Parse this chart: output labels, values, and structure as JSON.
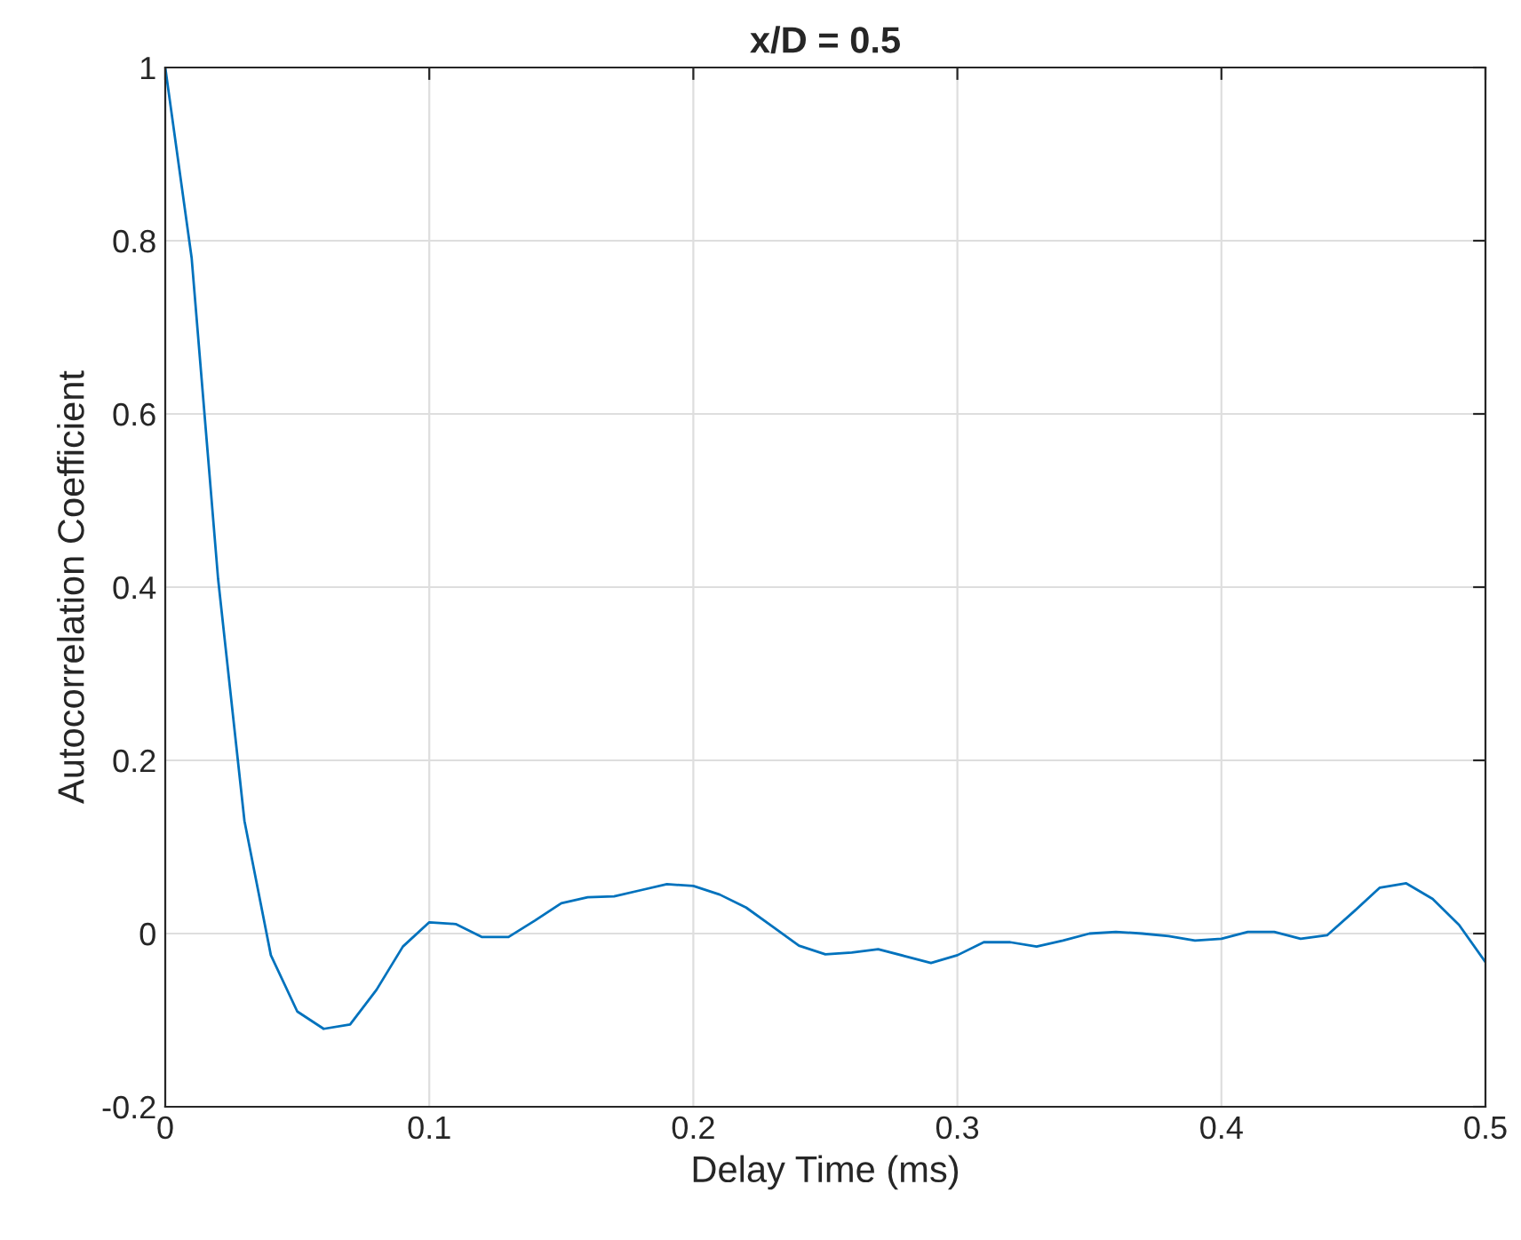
{
  "chart_data": {
    "type": "line",
    "title": "x/D = 0.5",
    "xlabel": "Delay Time (ms)",
    "ylabel": "Autocorrelation Coefficient",
    "x": [
      0,
      0.01,
      0.02,
      0.03,
      0.04,
      0.05,
      0.06,
      0.07,
      0.08,
      0.09,
      0.1,
      0.11,
      0.12,
      0.13,
      0.14,
      0.15,
      0.16,
      0.17,
      0.18,
      0.19,
      0.2,
      0.21,
      0.22,
      0.23,
      0.24,
      0.25,
      0.26,
      0.27,
      0.28,
      0.29,
      0.3,
      0.31,
      0.32,
      0.33,
      0.34,
      0.35,
      0.36,
      0.37,
      0.38,
      0.39,
      0.4,
      0.41,
      0.42,
      0.43,
      0.44,
      0.45,
      0.46,
      0.47,
      0.48,
      0.49,
      0.5
    ],
    "series": [
      {
        "color": "#0072bd",
        "values": [
          1.0,
          0.78,
          0.41,
          0.13,
          -0.025,
          -0.09,
          -0.11,
          -0.105,
          -0.065,
          -0.015,
          0.013,
          0.011,
          -0.004,
          -0.004,
          0.015,
          0.035,
          0.042,
          0.043,
          0.05,
          0.057,
          0.055,
          0.045,
          0.03,
          0.008,
          -0.014,
          -0.024,
          -0.022,
          -0.018,
          -0.026,
          -0.034,
          -0.025,
          -0.01,
          -0.01,
          -0.015,
          -0.008,
          0.0,
          0.002,
          0.0,
          -0.003,
          -0.008,
          -0.006,
          0.002,
          0.002,
          -0.006,
          -0.002,
          0.025,
          0.053,
          0.058,
          0.04,
          0.01,
          -0.033
        ]
      }
    ],
    "xlim": [
      0,
      0.5
    ],
    "xticks": [
      0,
      0.1,
      0.2,
      0.3,
      0.4,
      0.5
    ],
    "ylim": [
      -0.2,
      1
    ],
    "yticks": [
      -0.2,
      0,
      0.2,
      0.4,
      0.6,
      0.8,
      1
    ],
    "grid": true,
    "line_style": "solid"
  }
}
